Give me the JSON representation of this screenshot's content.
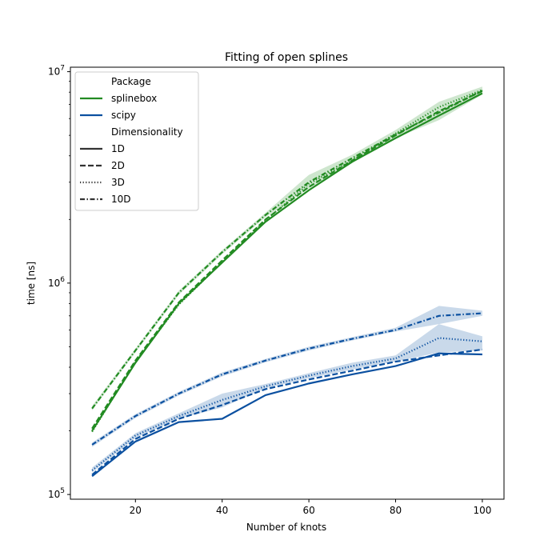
{
  "chart_data": {
    "type": "line",
    "title": "Fitting of open splines",
    "xlabel": "Number of knots",
    "ylabel": "time [ns]",
    "xlim": [
      5,
      105
    ],
    "ylim": [
      95000,
      10500000
    ],
    "yscale": "log",
    "x_ticks": [
      20,
      40,
      60,
      80,
      100
    ],
    "y_ticks": [
      {
        "value": 100000,
        "base": "10",
        "exp": "5"
      },
      {
        "value": 1000000,
        "base": "10",
        "exp": "6"
      },
      {
        "value": 10000000,
        "base": "10",
        "exp": "7"
      }
    ],
    "x": [
      10,
      20,
      30,
      40,
      50,
      60,
      70,
      80,
      90,
      100
    ],
    "colors": {
      "splinebox": "#228b22",
      "scipy": "#0b50a0"
    },
    "legend": {
      "placement": "upper-left",
      "package_title": "Package",
      "packages": [
        {
          "label": "splinebox",
          "key": "splinebox"
        },
        {
          "label": "scipy",
          "key": "scipy"
        }
      ],
      "dimensionality_title": "Dimensionality",
      "dimensionalities": [
        {
          "label": "1D",
          "dash": "solid"
        },
        {
          "label": "2D",
          "dash": "dashed"
        },
        {
          "label": "3D",
          "dash": "dotted"
        },
        {
          "label": "10D",
          "dash": "dashdot"
        }
      ]
    },
    "series": [
      {
        "package": "splinebox",
        "dim": "1D",
        "dash": "solid",
        "values": [
          200000,
          420000,
          800000,
          1250000,
          1950000,
          2750000,
          3750000,
          4850000,
          6200000,
          7900000
        ]
      },
      {
        "package": "splinebox",
        "dim": "2D",
        "dash": "dashed",
        "values": [
          205000,
          430000,
          810000,
          1280000,
          2000000,
          2850000,
          3800000,
          5000000,
          6500000,
          8100000
        ]
      },
      {
        "package": "splinebox",
        "dim": "3D",
        "dash": "dotted",
        "values": [
          198000,
          425000,
          790000,
          1260000,
          1980000,
          2950000,
          3800000,
          5100000,
          6800000,
          8200000
        ]
      },
      {
        "package": "splinebox",
        "dim": "10D",
        "dash": "dashdot",
        "values": [
          255000,
          480000,
          900000,
          1400000,
          2100000,
          3000000,
          3900000,
          5050000,
          6400000,
          8150000
        ],
        "band": [
          [
            250000,
            262000
          ],
          [
            470000,
            490000
          ],
          [
            880000,
            920000
          ],
          [
            1370000,
            1430000
          ],
          [
            2050000,
            2150000
          ],
          [
            2800000,
            3250000
          ],
          [
            3700000,
            4050000
          ],
          [
            4850000,
            5300000
          ],
          [
            5900000,
            7200000
          ],
          [
            7800000,
            8500000
          ]
        ]
      },
      {
        "package": "scipy",
        "dim": "1D",
        "dash": "solid",
        "values": [
          122000,
          178000,
          220000,
          228000,
          295000,
          335000,
          370000,
          405000,
          465000,
          460000
        ]
      },
      {
        "package": "scipy",
        "dim": "2D",
        "dash": "dashed",
        "values": [
          124000,
          183000,
          228000,
          265000,
          315000,
          350000,
          385000,
          425000,
          455000,
          485000
        ]
      },
      {
        "package": "scipy",
        "dim": "3D",
        "dash": "dotted",
        "values": [
          130000,
          190000,
          235000,
          280000,
          325000,
          365000,
          405000,
          440000,
          550000,
          530000
        ],
        "band": [
          [
            127000,
            134000
          ],
          [
            185000,
            195000
          ],
          [
            228000,
            242000
          ],
          [
            258000,
            300000
          ],
          [
            318000,
            333000
          ],
          [
            355000,
            375000
          ],
          [
            390000,
            420000
          ],
          [
            425000,
            455000
          ],
          [
            470000,
            640000
          ],
          [
            480000,
            560000
          ]
        ]
      },
      {
        "package": "scipy",
        "dim": "10D",
        "dash": "dashdot",
        "values": [
          172000,
          235000,
          300000,
          370000,
          430000,
          490000,
          545000,
          600000,
          700000,
          720000
        ],
        "band": [
          [
            168000,
            176000
          ],
          [
            230000,
            240000
          ],
          [
            294000,
            306000
          ],
          [
            362000,
            378000
          ],
          [
            422000,
            438000
          ],
          [
            480000,
            500000
          ],
          [
            535000,
            555000
          ],
          [
            590000,
            615000
          ],
          [
            640000,
            780000
          ],
          [
            700000,
            740000
          ]
        ]
      }
    ]
  }
}
